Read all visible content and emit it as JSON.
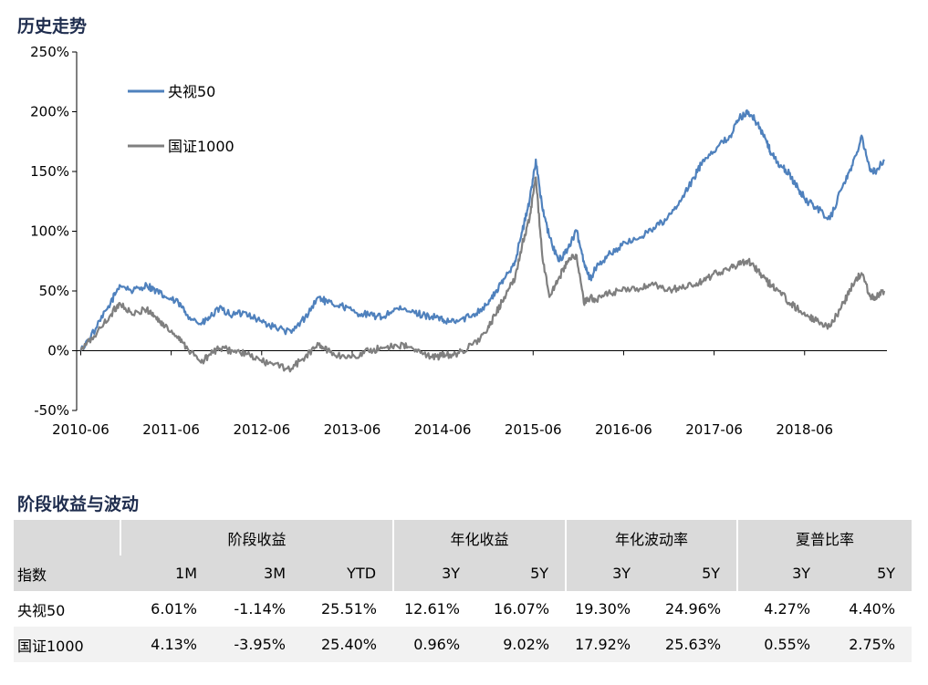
{
  "chart_section": {
    "title": "历史走势"
  },
  "table_section": {
    "title": "阶段收益与波动"
  },
  "chart_data": {
    "type": "line",
    "title": "",
    "xlabel": "",
    "ylabel": "",
    "x_range": [
      2010.375,
      2019.33
    ],
    "ylim": [
      -50,
      250
    ],
    "y_ticks": [
      -50,
      0,
      50,
      100,
      150,
      200,
      250
    ],
    "y_tick_labels": [
      "-50%",
      "0%",
      "50%",
      "100%",
      "150%",
      "200%",
      "250%"
    ],
    "x_ticks": [
      2010.42,
      2011.42,
      2012.42,
      2013.42,
      2014.42,
      2015.42,
      2016.42,
      2017.42,
      2018.42
    ],
    "x_tick_labels": [
      "2010-06",
      "2011-06",
      "2012-06",
      "2013-06",
      "2014-06",
      "2015-06",
      "2016-06",
      "2017-06",
      "2018-06"
    ],
    "grid": false,
    "legend_position": "top-left",
    "series": [
      {
        "name": "央视50",
        "color": "#4f81bd",
        "x": [
          2010.42,
          2010.6,
          2010.75,
          2010.85,
          2011.0,
          2011.15,
          2011.25,
          2011.35,
          2011.5,
          2011.6,
          2011.75,
          2011.85,
          2011.95,
          2012.1,
          2012.25,
          2012.4,
          2012.55,
          2012.75,
          2012.9,
          2013.05,
          2013.15,
          2013.3,
          2013.45,
          2013.6,
          2013.75,
          2013.9,
          2014.05,
          2014.2,
          2014.35,
          2014.45,
          2014.6,
          2014.75,
          2014.9,
          2015.0,
          2015.1,
          2015.22,
          2015.3,
          2015.38,
          2015.45,
          2015.52,
          2015.6,
          2015.7,
          2015.8,
          2015.9,
          2015.98,
          2016.05,
          2016.12,
          2016.25,
          2016.4,
          2016.6,
          2016.75,
          2016.9,
          2017.05,
          2017.2,
          2017.3,
          2017.45,
          2017.6,
          2017.7,
          2017.8,
          2017.9,
          2018.0,
          2018.05,
          2018.15,
          2018.25,
          2018.35,
          2018.45,
          2018.55,
          2018.7,
          2018.85,
          2018.95,
          2019.05,
          2019.15,
          2019.2,
          2019.3
        ],
        "values": [
          0,
          20,
          40,
          55,
          50,
          55,
          50,
          45,
          40,
          30,
          22,
          28,
          35,
          30,
          32,
          25,
          20,
          15,
          28,
          45,
          40,
          38,
          32,
          30,
          28,
          35,
          33,
          30,
          28,
          24,
          25,
          30,
          38,
          48,
          60,
          75,
          100,
          125,
          160,
          120,
          95,
          75,
          85,
          100,
          75,
          60,
          70,
          80,
          88,
          95,
          103,
          110,
          125,
          145,
          160,
          170,
          180,
          195,
          200,
          190,
          175,
          165,
          155,
          148,
          135,
          125,
          120,
          110,
          140,
          155,
          180,
          150,
          150,
          160
        ]
      },
      {
        "name": "国证1000",
        "color": "#7f7f7f",
        "x": [
          2010.42,
          2010.6,
          2010.75,
          2010.85,
          2011.0,
          2011.15,
          2011.25,
          2011.35,
          2011.5,
          2011.6,
          2011.75,
          2011.85,
          2011.95,
          2012.1,
          2012.25,
          2012.4,
          2012.55,
          2012.75,
          2012.9,
          2013.05,
          2013.15,
          2013.3,
          2013.45,
          2013.6,
          2013.75,
          2013.9,
          2014.05,
          2014.2,
          2014.35,
          2014.45,
          2014.6,
          2014.75,
          2014.9,
          2015.0,
          2015.1,
          2015.22,
          2015.3,
          2015.38,
          2015.45,
          2015.52,
          2015.6,
          2015.7,
          2015.8,
          2015.9,
          2015.98,
          2016.05,
          2016.12,
          2016.25,
          2016.4,
          2016.6,
          2016.75,
          2016.9,
          2017.05,
          2017.2,
          2017.3,
          2017.45,
          2017.6,
          2017.7,
          2017.8,
          2017.9,
          2018.0,
          2018.05,
          2018.15,
          2018.25,
          2018.35,
          2018.45,
          2018.55,
          2018.7,
          2018.85,
          2018.95,
          2019.05,
          2019.15,
          2019.2,
          2019.3
        ],
        "values": [
          0,
          15,
          30,
          40,
          30,
          35,
          28,
          20,
          12,
          2,
          -10,
          -3,
          2,
          0,
          -3,
          -8,
          -12,
          -15,
          -5,
          5,
          0,
          -5,
          -5,
          0,
          2,
          5,
          3,
          -3,
          -5,
          -4,
          -2,
          5,
          15,
          30,
          45,
          60,
          90,
          110,
          145,
          80,
          45,
          60,
          75,
          80,
          40,
          45,
          42,
          48,
          50,
          52,
          55,
          50,
          53,
          55,
          58,
          65,
          70,
          72,
          75,
          68,
          58,
          55,
          50,
          40,
          35,
          30,
          25,
          20,
          40,
          55,
          65,
          45,
          45,
          50
        ]
      }
    ]
  },
  "table": {
    "group_headers": [
      "阶段收益",
      "年化收益",
      "年化波动率",
      "夏普比率"
    ],
    "sub_header_first": "指数",
    "sub_headers": [
      "1M",
      "3M",
      "YTD",
      "3Y",
      "5Y",
      "3Y",
      "5Y",
      "3Y",
      "5Y"
    ],
    "rows": [
      {
        "name": "央视50",
        "values": [
          "6.01%",
          "-1.14%",
          "25.51%",
          "12.61%",
          "16.07%",
          "19.30%",
          "24.96%",
          "4.27%",
          "4.40%"
        ]
      },
      {
        "name": "国证1000",
        "values": [
          "4.13%",
          "-3.95%",
          "25.40%",
          "0.96%",
          "9.02%",
          "17.92%",
          "25.63%",
          "0.55%",
          "2.75%"
        ]
      }
    ]
  }
}
